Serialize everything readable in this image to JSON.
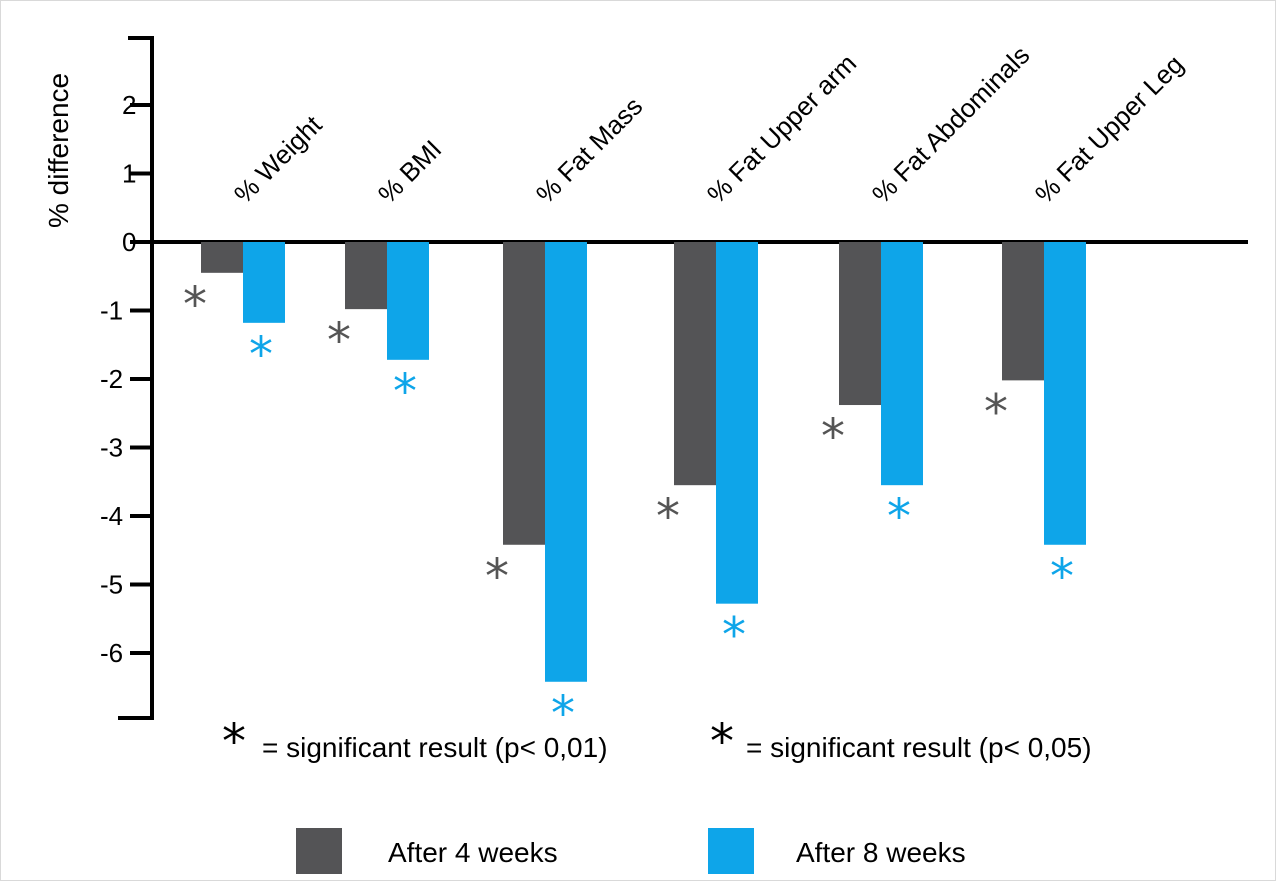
{
  "chart_data": {
    "type": "bar",
    "ylabel": "% difference",
    "ylim": [
      -6.9,
      3.0
    ],
    "yticks": [
      2,
      1,
      0,
      -1,
      -2,
      -3,
      -4,
      -5,
      -6
    ],
    "categories": [
      "% Weight",
      "% BMI",
      "% Fat Mass",
      "% Fat Upper arm",
      "% Fat Abdominals",
      "% Fat Upper Leg"
    ],
    "series": [
      {
        "name": "After 4 weeks",
        "color": "#545456",
        "values": [
          -0.45,
          -0.98,
          -4.42,
          -3.55,
          -2.38,
          -2.02
        ],
        "significant": [
          true,
          true,
          true,
          true,
          true,
          true
        ]
      },
      {
        "name": "After 8 weeks",
        "color": "#0ea5e9",
        "values": [
          -1.18,
          -1.72,
          -6.42,
          -5.28,
          -3.55,
          -4.42
        ],
        "significant": [
          true,
          true,
          true,
          true,
          true,
          true
        ]
      }
    ],
    "annotations": {
      "star_symbol": "*",
      "note_dark": "= significant result (p< 0,01)",
      "note_blue": "= significant result (p< 0,05)",
      "star_dark_color": "#000000",
      "star_blue_color": "#0ea5e9"
    },
    "legend_position": "bottom",
    "grid": false
  }
}
